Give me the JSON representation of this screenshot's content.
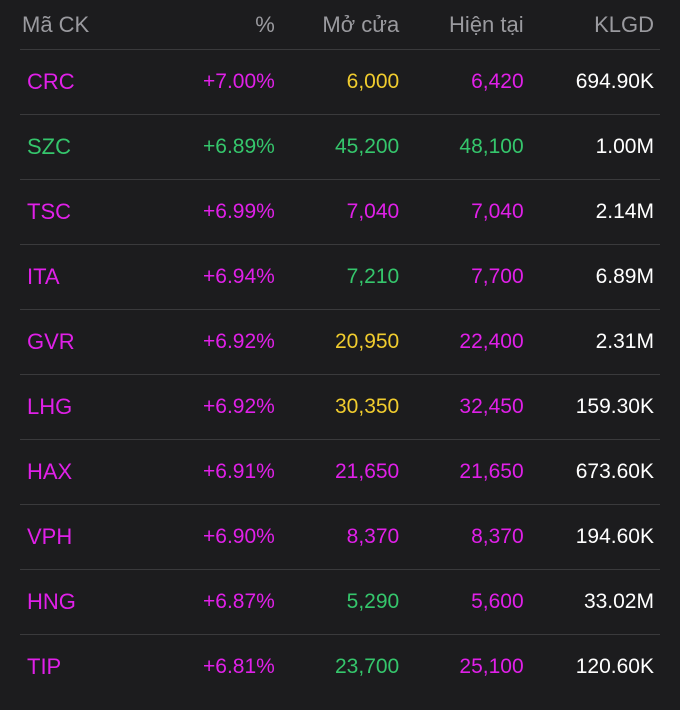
{
  "header": {
    "symbol": "Mã CK",
    "percent": "%",
    "open": "Mở cửa",
    "current": "Hiện tại",
    "volume": "KLGD"
  },
  "colors": {
    "up": "#e020e8",
    "green": "#35c66c",
    "yellow": "#f0cc2e",
    "white": "#ffffff",
    "header": "#9a9a9f"
  },
  "rows": [
    {
      "symbol": "CRC",
      "percent": "+7.00%",
      "open": "6,000",
      "current": "6,420",
      "volume": "694.90K",
      "symbol_color": "up",
      "percent_color": "up",
      "open_color": "yellow",
      "current_color": "up"
    },
    {
      "symbol": "SZC",
      "percent": "+6.89%",
      "open": "45,200",
      "current": "48,100",
      "volume": "1.00M",
      "symbol_color": "green",
      "percent_color": "green",
      "open_color": "green",
      "current_color": "green"
    },
    {
      "symbol": "TSC",
      "percent": "+6.99%",
      "open": "7,040",
      "current": "7,040",
      "volume": "2.14M",
      "symbol_color": "up",
      "percent_color": "up",
      "open_color": "up",
      "current_color": "up"
    },
    {
      "symbol": "ITA",
      "percent": "+6.94%",
      "open": "7,210",
      "current": "7,700",
      "volume": "6.89M",
      "symbol_color": "up",
      "percent_color": "up",
      "open_color": "green",
      "current_color": "up"
    },
    {
      "symbol": "GVR",
      "percent": "+6.92%",
      "open": "20,950",
      "current": "22,400",
      "volume": "2.31M",
      "symbol_color": "up",
      "percent_color": "up",
      "open_color": "yellow",
      "current_color": "up"
    },
    {
      "symbol": "LHG",
      "percent": "+6.92%",
      "open": "30,350",
      "current": "32,450",
      "volume": "159.30K",
      "symbol_color": "up",
      "percent_color": "up",
      "open_color": "yellow",
      "current_color": "up"
    },
    {
      "symbol": "HAX",
      "percent": "+6.91%",
      "open": "21,650",
      "current": "21,650",
      "volume": "673.60K",
      "symbol_color": "up",
      "percent_color": "up",
      "open_color": "up",
      "current_color": "up"
    },
    {
      "symbol": "VPH",
      "percent": "+6.90%",
      "open": "8,370",
      "current": "8,370",
      "volume": "194.60K",
      "symbol_color": "up",
      "percent_color": "up",
      "open_color": "up",
      "current_color": "up"
    },
    {
      "symbol": "HNG",
      "percent": "+6.87%",
      "open": "5,290",
      "current": "5,600",
      "volume": "33.02M",
      "symbol_color": "up",
      "percent_color": "up",
      "open_color": "green",
      "current_color": "up"
    },
    {
      "symbol": "TIP",
      "percent": "+6.81%",
      "open": "23,700",
      "current": "25,100",
      "volume": "120.60K",
      "symbol_color": "up",
      "percent_color": "up",
      "open_color": "green",
      "current_color": "up"
    }
  ]
}
